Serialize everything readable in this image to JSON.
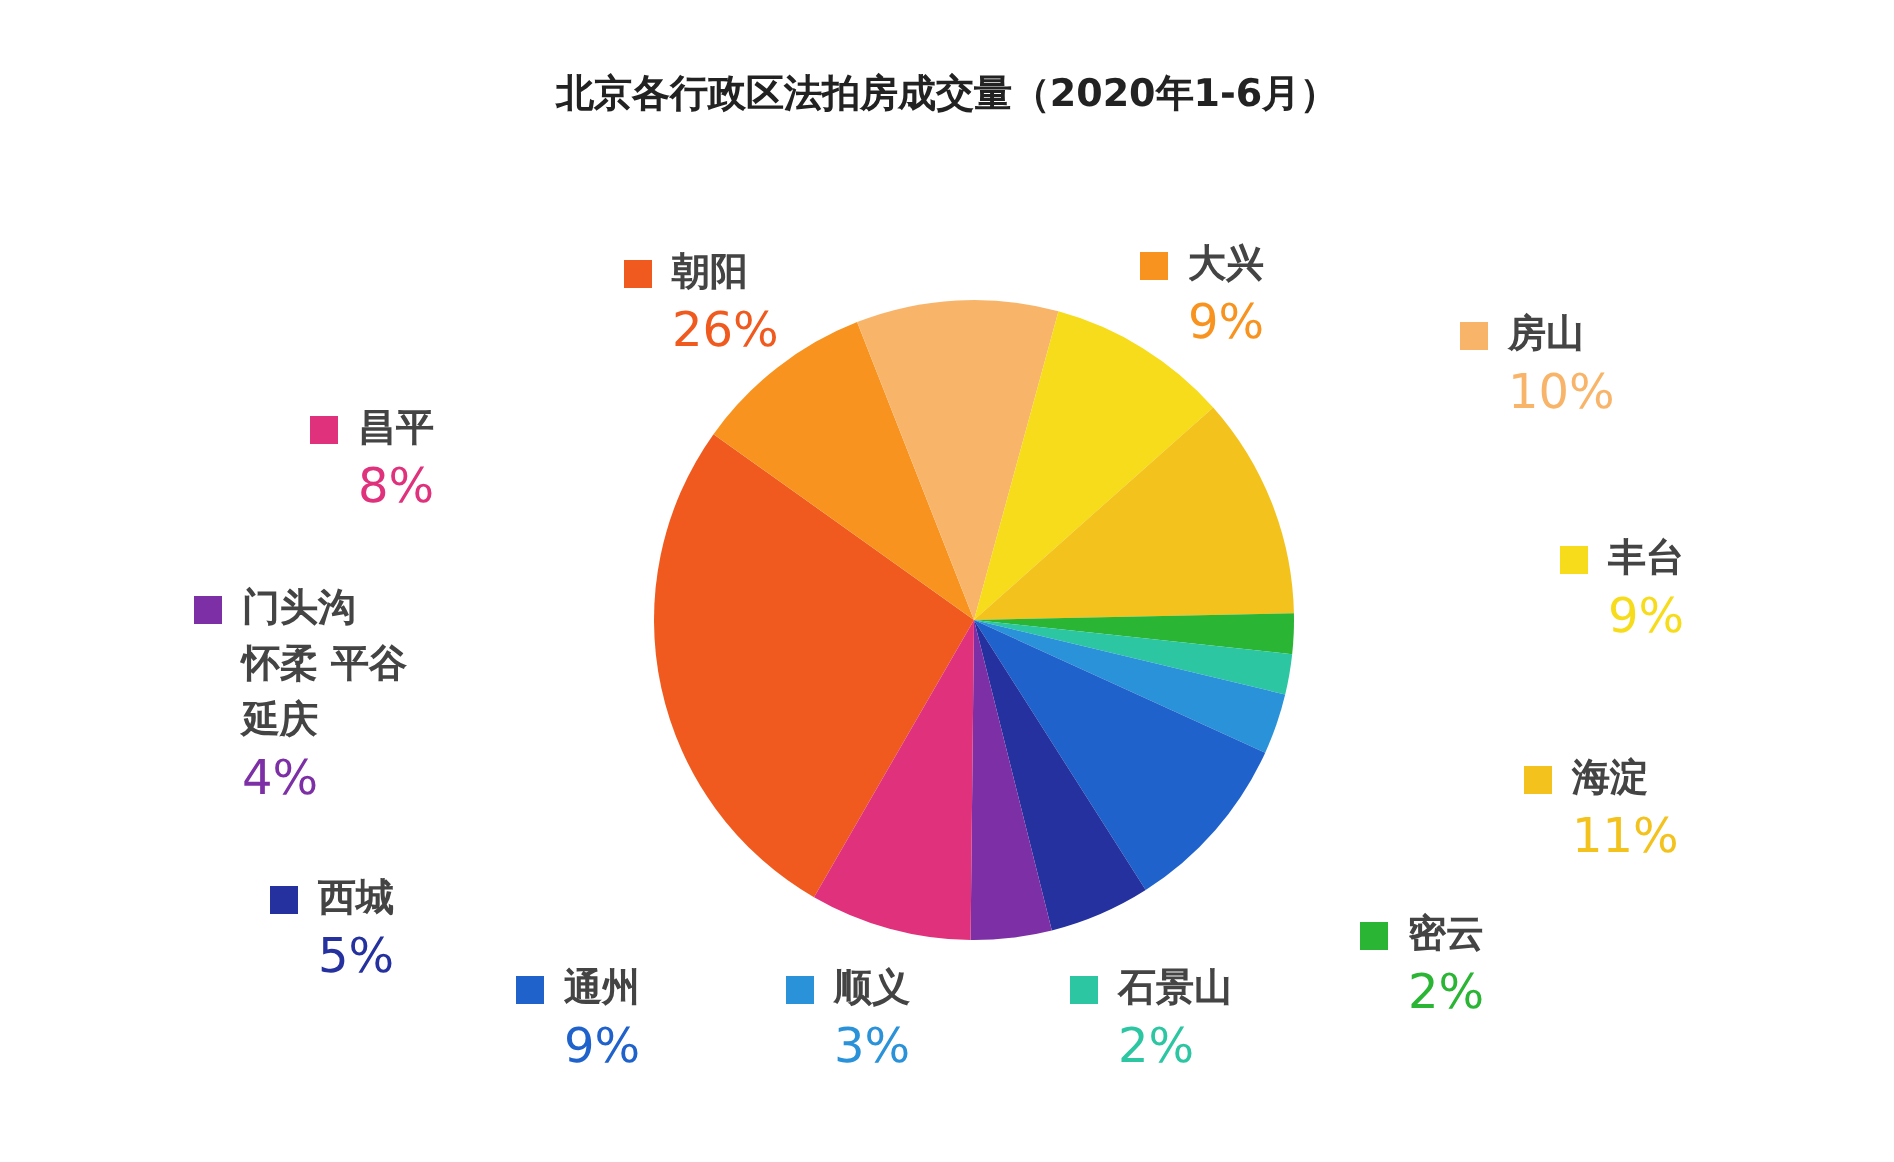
{
  "chart_data": {
    "type": "pie",
    "title": "北京各行政区法拍房成交量（2020年1-6月）",
    "categories": [
      "朝阳",
      "大兴",
      "房山",
      "丰台",
      "海淀",
      "密云",
      "石景山",
      "顺义",
      "通州",
      "西城",
      "门头沟怀柔 平谷延庆",
      "昌平"
    ],
    "values": [
      26,
      9,
      10,
      9,
      11,
      2,
      2,
      3,
      9,
      5,
      4,
      8
    ],
    "value_labels": [
      "26%",
      "9%",
      "10%",
      "9%",
      "11%",
      "2%",
      "2%",
      "3%",
      "9%",
      "5%",
      "4%",
      "8%"
    ],
    "colors": [
      "#f05a1e",
      "#f7931e",
      "#f8b56a",
      "#f6dc1a",
      "#f3c21c",
      "#2bb534",
      "#2cc6a2",
      "#2a92d8",
      "#1f62cc",
      "#24319e",
      "#7d2fa6",
      "#e0327c"
    ],
    "legend": "bottom left"
  }
}
